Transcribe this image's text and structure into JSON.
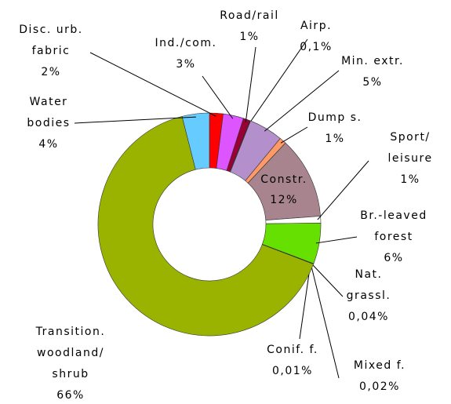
{
  "chart_data": {
    "type": "donut",
    "categories": [
      [
        "Disc. urb.",
        "fabric"
      ],
      [
        "Ind./com."
      ],
      [
        "Road/rail"
      ],
      [
        "Airp."
      ],
      [
        "Min. extr."
      ],
      [
        "Dump s."
      ],
      [
        "Constr."
      ],
      [
        "Sport/",
        "leisure"
      ],
      [
        "Br.-leaved",
        "forest"
      ],
      [
        "Nat.",
        "grassl."
      ],
      [
        "Conif. f."
      ],
      [
        "Mixed f."
      ],
      [
        "Transition.",
        "woodland/",
        "shrub"
      ],
      [
        "Water",
        "bodies"
      ]
    ],
    "values": [
      2,
      3,
      1,
      0.1,
      5,
      1,
      12,
      1,
      6,
      0.04,
      0.01,
      0.02,
      66,
      4
    ],
    "value_labels": [
      "2%",
      "3%",
      "1%",
      "0,1%",
      "5%",
      "1%",
      "12%",
      "1%",
      "6%",
      "0,04%",
      "0,01%",
      "0,02%",
      "66%",
      "4%"
    ],
    "colors": [
      "#ff0000",
      "#dd55ff",
      "#990033",
      "#660033",
      "#b390cc",
      "#ff9966",
      "#a8848f",
      "#ffffff",
      "#66e000",
      "#88cc00",
      "#779900",
      "#aacc33",
      "#99b300",
      "#66ccff"
    ]
  }
}
